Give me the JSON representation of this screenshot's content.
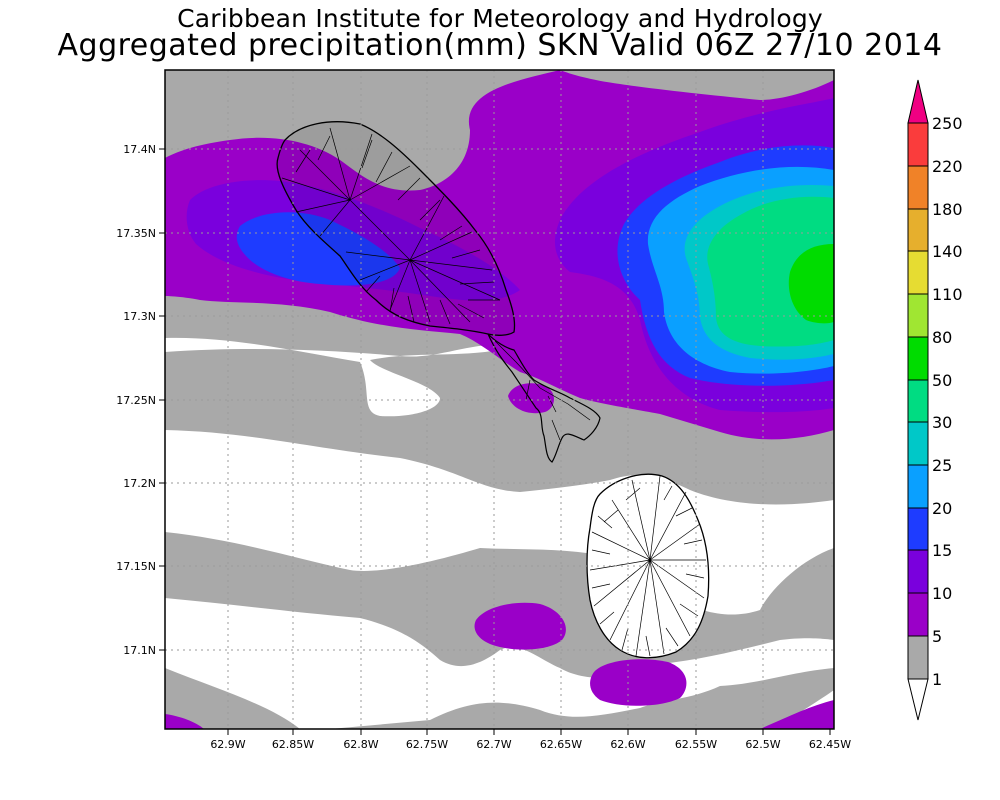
{
  "title_line1": "Caribbean Institute for Meteorology and Hydrology",
  "title_line2": "Aggregated precipitation(mm) SKN Valid 06Z 27/10 2014",
  "x_ticks": [
    "62.9W",
    "62.85W",
    "62.8W",
    "62.75W",
    "62.7W",
    "62.65W",
    "62.6W",
    "62.55W",
    "62.5W",
    "62.45W"
  ],
  "y_ticks": [
    "17.4N",
    "17.35N",
    "17.3N",
    "17.25N",
    "17.2N",
    "17.15N",
    "17.1N"
  ],
  "colorbar": {
    "levels": [
      "1",
      "5",
      "10",
      "15",
      "20",
      "25",
      "30",
      "50",
      "80",
      "110",
      "140",
      "180",
      "220",
      "250"
    ],
    "colors": [
      "#ffffff",
      "#a9a9a9",
      "#9a00c8",
      "#7a00dd",
      "#1e3cff",
      "#0aa0ff",
      "#00c8c8",
      "#00dc82",
      "#00dc00",
      "#a0e632",
      "#e6dc32",
      "#e6af2d",
      "#f08228",
      "#fa3c3c",
      "#f00082"
    ]
  },
  "map_colors": {
    "none": "#ffffff",
    "c1_5": "#a9a9a9",
    "c5_10": "#9a00c8",
    "c10_15": "#7a00dd",
    "c15_20": "#1e3cff",
    "c20_25": "#0aa0ff",
    "c25_30": "#00c8c8",
    "c30_50": "#00dc82",
    "c50_80": "#00dc00"
  }
}
